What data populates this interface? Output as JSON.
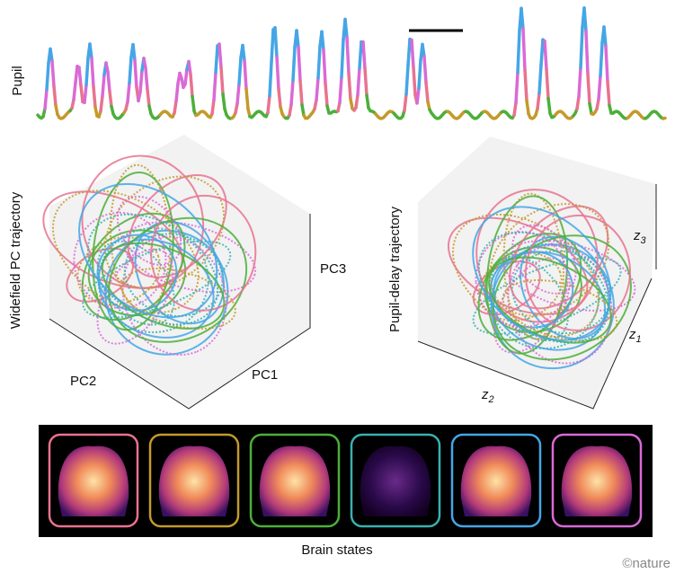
{
  "pupil": {
    "label": "Pupil"
  },
  "widefield": {
    "label": "Widefield PC trajectory",
    "axes": [
      "PC1",
      "PC2",
      "PC3"
    ]
  },
  "pupil_delay": {
    "label": "Pupil-delay trajectory",
    "axes": [
      {
        "base": "z",
        "sub": "1"
      },
      {
        "base": "z",
        "sub": "2"
      },
      {
        "base": "z",
        "sub": "3"
      }
    ]
  },
  "brain_states": {
    "label": "Brain states"
  },
  "credit": "©nature"
}
